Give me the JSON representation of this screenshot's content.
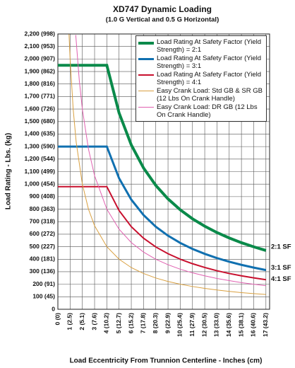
{
  "chart_data": {
    "type": "line",
    "title": "XD747 Dynamic Loading",
    "subtitle": "(1.0 G Vertical and 0.5 G Horizontal)",
    "y_label": "Load Rating - Lbs. (kg)",
    "x_label": "Load Eccentricity From Trunnion Centerline - Inches (cm)",
    "xlim": [
      0,
      17.3
    ],
    "ylim": [
      0,
      2200
    ],
    "grid": true,
    "legend": "upper right",
    "xticks": [
      {
        "value": 0,
        "label": "0 (0)"
      },
      {
        "value": 1,
        "label": "1 (2.5)"
      },
      {
        "value": 2,
        "label": "2 (5.1)"
      },
      {
        "value": 3,
        "label": "3 (7.6)"
      },
      {
        "value": 4,
        "label": "4 (10.2)"
      },
      {
        "value": 5,
        "label": "5 (12.7)"
      },
      {
        "value": 6,
        "label": "6 (15.2)"
      },
      {
        "value": 7,
        "label": "7 (17.8)"
      },
      {
        "value": 8,
        "label": "8 (20.3)"
      },
      {
        "value": 9,
        "label": "9 (22.9)"
      },
      {
        "value": 10,
        "label": "10 (25.4)"
      },
      {
        "value": 11,
        "label": "11 (27.9)"
      },
      {
        "value": 12,
        "label": "12 (30.5)"
      },
      {
        "value": 13,
        "label": "13 (33.0)"
      },
      {
        "value": 14,
        "label": "14 (35.6)"
      },
      {
        "value": 15,
        "label": "15 (38.1)"
      },
      {
        "value": 16,
        "label": "16 (40.6)"
      },
      {
        "value": 17,
        "label": "17 (43.2)"
      }
    ],
    "yticks": [
      0,
      {
        "value": 100,
        "label": "100 (45)"
      },
      {
        "value": 200,
        "label": "200 (91)"
      },
      {
        "value": 300,
        "label": "300 (136)"
      },
      {
        "value": 400,
        "label": "400 (181)"
      },
      {
        "value": 500,
        "label": "500 (227)"
      },
      {
        "value": 600,
        "label": "600 (272)"
      },
      {
        "value": 700,
        "label": "700 (318)"
      },
      {
        "value": 800,
        "label": "800 (363)"
      },
      {
        "value": 900,
        "label": "900 (408)"
      },
      {
        "value": 1000,
        "label": "1,000 (454)"
      },
      {
        "value": 1100,
        "label": "1,100 (499)"
      },
      {
        "value": 1200,
        "label": "1,200 (544)"
      },
      {
        "value": 1300,
        "label": "1,300 (590)"
      },
      {
        "value": 1400,
        "label": "1,400 (635)"
      },
      {
        "value": 1500,
        "label": "1,500 (680)"
      },
      {
        "value": 1600,
        "label": "1,600 (726)"
      },
      {
        "value": 1700,
        "label": "1,700 (771)"
      },
      {
        "value": 1800,
        "label": "1,800 (816)"
      },
      {
        "value": 1900,
        "label": "1,900 (862)"
      },
      {
        "value": 2000,
        "label": "2,000 (907)"
      },
      {
        "value": 2100,
        "label": "2,100 (953)"
      },
      {
        "value": 2200,
        "label": "2,200 (998)"
      }
    ],
    "series": [
      {
        "name": "Load Rating At Safety Factor (Yield Strength) = 2:1",
        "color": "#0a8a4a",
        "x": [
          0,
          4,
          5,
          6,
          7,
          8,
          9,
          10,
          11,
          12,
          13,
          14,
          15,
          16,
          17
        ],
        "values": [
          1950,
          1950,
          1569,
          1313,
          1129,
          990,
          882,
          795,
          723,
          664,
          613,
          570,
          532,
          499,
          470
        ]
      },
      {
        "name": "Load Rating At Safety Factor (Yield Strength) = 3:1",
        "color": "#1070b0",
        "x": [
          0,
          4,
          5,
          6,
          7,
          8,
          9,
          10,
          11,
          12,
          13,
          14,
          15,
          16,
          17
        ],
        "values": [
          1300,
          1300,
          1047,
          876,
          753,
          660,
          588,
          530,
          482,
          443,
          409,
          380,
          355,
          333,
          313
        ]
      },
      {
        "name": "Load Rating At Safety Factor (Yield Strength) = 4:1",
        "color": "#c8102e",
        "x": [
          0,
          4,
          5,
          6,
          7,
          8,
          9,
          10,
          11,
          12,
          13,
          14,
          15,
          16,
          17
        ],
        "values": [
          980,
          980,
          789,
          660,
          568,
          498,
          444,
          400,
          364,
          334,
          308,
          286,
          267,
          251,
          236
        ]
      },
      {
        "name": "Easy Crank Load: Std GB & SR GB (12 Lbs On Crank Handle)",
        "color": "#d9a040",
        "x": [
          0.91,
          1,
          1.25,
          1.5,
          2,
          2.5,
          3,
          4,
          5,
          6,
          7,
          8,
          9,
          10,
          11,
          12,
          13,
          14,
          15,
          16,
          17
        ],
        "values": [
          2198,
          2000,
          1600,
          1333,
          1000,
          800,
          667,
          500,
          400,
          333,
          286,
          250,
          222,
          200,
          182,
          167,
          154,
          143,
          133,
          125,
          118
        ]
      },
      {
        "name": "Easy Crank Load: DR GB (12 Lbs On Crank Handle)",
        "color": "#e060b0",
        "x": [
          1.46,
          1.75,
          2,
          2.5,
          3,
          4,
          5,
          6,
          7,
          8,
          9,
          10,
          11,
          12,
          13,
          14,
          15,
          16,
          17
        ],
        "values": [
          2192,
          1829,
          1600,
          1280,
          1067,
          800,
          640,
          533,
          457,
          400,
          356,
          320,
          291,
          267,
          246,
          229,
          213,
          200,
          188
        ]
      }
    ],
    "annotations": [
      "2:1 SF",
      "3:1 SF",
      "4:1 SF"
    ]
  }
}
